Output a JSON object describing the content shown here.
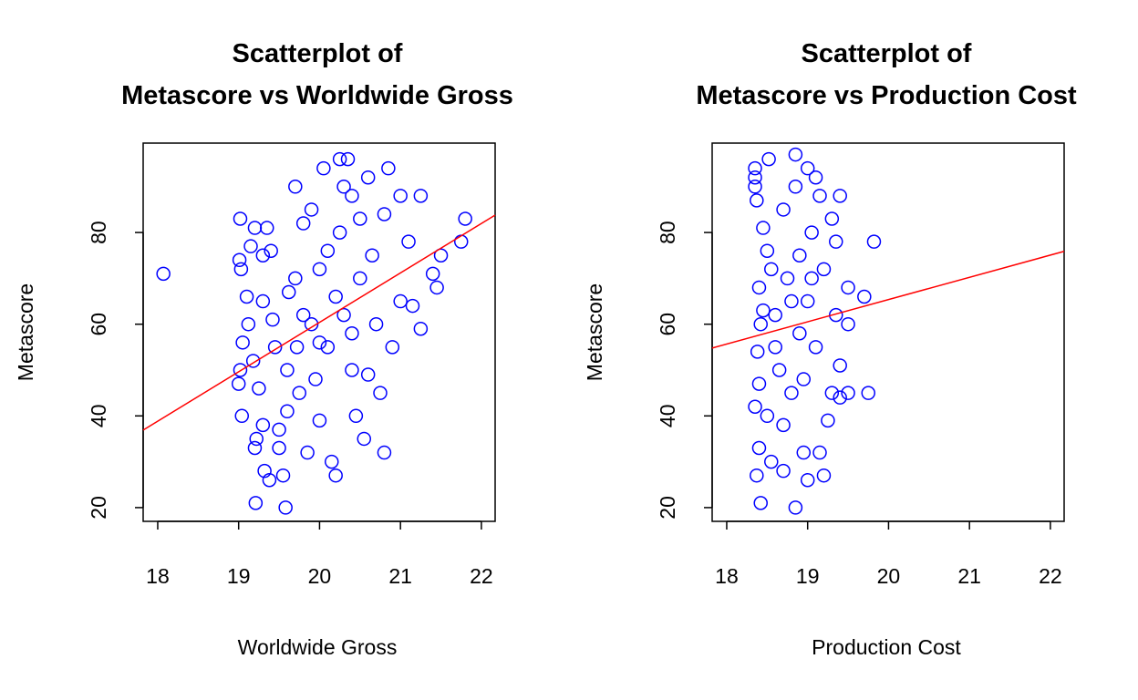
{
  "chart_data": [
    {
      "type": "scatter",
      "title": [
        "Scatterplot of",
        "Metascore vs Worldwide Gross"
      ],
      "x_label": "Worldwide Gross",
      "y_label": "Metascore",
      "xlim": [
        17.82,
        22.17
      ],
      "ylim": [
        17,
        99.5
      ],
      "xticks": [
        18,
        19,
        20,
        21,
        22
      ],
      "yticks": [
        20,
        40,
        60,
        80
      ],
      "series": [
        {
          "color": "blue",
          "x": [
            18.07,
            19.02,
            19.01,
            19.03,
            19.05,
            19.02,
            19.04,
            19.0,
            19.1,
            19.15,
            19.2,
            19.12,
            19.18,
            19.22,
            19.2,
            19.21,
            19.25,
            19.3,
            19.3,
            19.35,
            19.3,
            19.32,
            19.38,
            19.4,
            19.42,
            19.45,
            19.5,
            19.5,
            19.55,
            19.58,
            19.6,
            19.62,
            19.7,
            19.7,
            19.72,
            19.75,
            19.8,
            19.85,
            19.9,
            19.9,
            19.95,
            20.0,
            20.0,
            20.05,
            20.1,
            20.1,
            20.15,
            20.2,
            20.25,
            20.25,
            20.3,
            20.3,
            20.35,
            20.4,
            20.4,
            20.45,
            20.5,
            20.5,
            20.55,
            20.6,
            20.6,
            20.65,
            20.7,
            20.75,
            20.8,
            20.85,
            20.8,
            20.9,
            21.0,
            21.0,
            21.1,
            21.15,
            21.25,
            21.25,
            21.4,
            21.45,
            21.5,
            21.75,
            21.8,
            20.0,
            19.6,
            20.2,
            19.8,
            20.4
          ],
          "y": [
            71,
            83,
            74,
            72,
            56,
            50,
            40,
            47,
            66,
            77,
            81,
            60,
            52,
            35,
            33,
            21,
            46,
            75,
            65,
            81,
            38,
            28,
            26,
            76,
            61,
            55,
            37,
            33,
            27,
            20,
            41,
            67,
            90,
            70,
            55,
            45,
            82,
            32,
            85,
            60,
            48,
            72,
            39,
            94,
            76,
            55,
            30,
            27,
            96,
            80,
            90,
            62,
            96,
            88,
            50,
            40,
            83,
            70,
            35,
            49,
            92,
            75,
            60,
            45,
            84,
            94,
            32,
            55,
            65,
            88,
            78,
            64,
            88,
            59,
            71,
            68,
            75,
            78,
            83,
            56,
            50,
            66,
            62,
            58
          ]
        }
      ],
      "trend_line": {
        "color": "red",
        "x": [
          17.82,
          22.17
        ],
        "y": [
          36.9,
          83.8
        ]
      }
    },
    {
      "type": "scatter",
      "title": [
        "Scatterplot of",
        "Metascore vs Production Cost"
      ],
      "x_label": "Production Cost",
      "y_label": "Metascore",
      "xlim": [
        17.82,
        22.17
      ],
      "ylim": [
        17,
        99.5
      ],
      "xticks": [
        18,
        19,
        20,
        21,
        22
      ],
      "yticks": [
        20,
        40,
        60,
        80
      ],
      "series": [
        {
          "color": "blue",
          "x": [
            18.35,
            18.35,
            18.37,
            18.35,
            18.52,
            18.38,
            18.4,
            18.42,
            18.4,
            18.35,
            18.4,
            18.37,
            18.42,
            18.45,
            18.5,
            18.5,
            18.55,
            18.6,
            18.65,
            18.7,
            18.7,
            18.75,
            18.8,
            18.85,
            18.85,
            18.85,
            18.9,
            18.9,
            18.95,
            19.0,
            19.0,
            19.0,
            19.05,
            19.1,
            19.1,
            19.15,
            19.15,
            19.2,
            19.2,
            19.25,
            19.3,
            19.3,
            19.35,
            19.35,
            19.4,
            19.4,
            19.4,
            19.5,
            19.5,
            19.5,
            19.75,
            19.7,
            19.82,
            18.6,
            18.8,
            18.95,
            19.05,
            18.7,
            18.55,
            18.45
          ],
          "y": [
            92,
            90,
            87,
            94,
            96,
            54,
            68,
            60,
            47,
            42,
            33,
            27,
            21,
            81,
            76,
            40,
            30,
            62,
            50,
            85,
            28,
            70,
            45,
            97,
            90,
            20,
            75,
            58,
            32,
            94,
            26,
            65,
            80,
            92,
            55,
            88,
            32,
            27,
            72,
            39,
            83,
            45,
            62,
            78,
            88,
            44,
            51,
            60,
            45,
            68,
            45,
            66,
            78,
            55,
            65,
            48,
            70,
            38,
            72,
            63
          ]
        }
      ],
      "trend_line": {
        "color": "red",
        "x": [
          17.82,
          22.17
        ],
        "y": [
          54.8,
          75.9
        ]
      }
    }
  ]
}
